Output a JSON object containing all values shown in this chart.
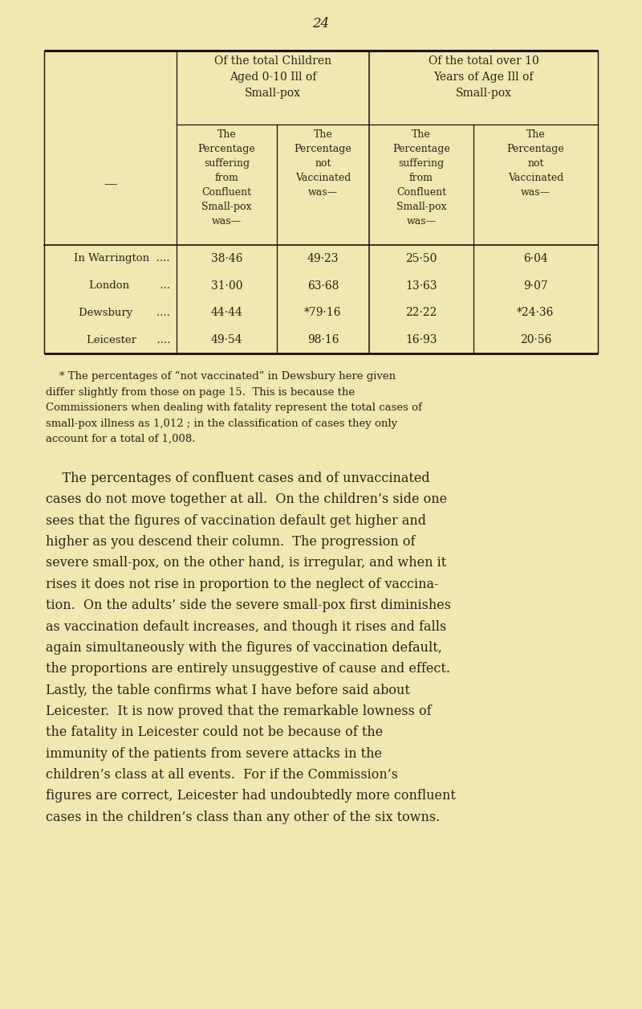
{
  "bg_color": "#f0e8b0",
  "page_number": "24",
  "table": {
    "col_headers_top": [
      "Of the total Children\nAged 0-10 Ill of\nSmall-pox",
      "Of the total over 10\nYears of Age Ill of\nSmall-pox"
    ],
    "col_headers_sub": [
      "The\nPercentage\nsuffering\nfrom\nConfluent\nSmall-pox\nwas—",
      "The\nPercentage\nnot\nVaccinated\nwas—",
      "The\nPercentage\nsuffering\nfrom\nConfluent\nSmall-pox\nwas—",
      "The\nPercentage\nnot\nVaccinated\nwas—"
    ],
    "row_header_label": "—",
    "rows": [
      [
        "In Warrington  ....",
        "38·46",
        "49·23",
        "25·50",
        "6·04"
      ],
      [
        "London         ...",
        "31·00",
        "63·68",
        "13·63",
        "9·07"
      ],
      [
        "Dewsbury       ....",
        "44·44",
        "*79·16",
        "22·22",
        "*24·36"
      ],
      [
        "Leicester      ....",
        "49·54",
        "98·16",
        "16·93",
        "20·56"
      ]
    ]
  },
  "footnote": "    * The percentages of “not vaccinated” in Dewsbury here given\ndiffer slightly from those on page 15.  This is because the\nCommissioners when dealing with fatality represent the total cases of\nsmall-pox illness as 1,012 ; in the classification of cases they only\naccount for a total of 1,008.",
  "body_paragraphs": [
    "    The percentages of confluent cases and of unvaccinated\ncases do not move together at all.  On the children’s side one\nsees that the figures of vaccination default get higher and\nhigher as you descend their column.  The progression of\nsevere small-pox, on the other hand, is irregular, and when it\nrises it does not rise in proportion to the neglect of vaccina-\ntion.  On the adults’ side the severe small-pox first diminishes\nas vaccination default increases, and though it rises and falls\nagain simultaneously with the figures of vaccination default,\nthe proportions are entirely unsuggestive of cause and effect.\nLastly, the table confirms what I have before said about\nLeicester.  It is now proved that the remarkable lowness of\nthe fatality in Leicester could not be because of the\nimmunity of the patients from severe attacks in the\nchildren’s class at all events.  For if the Commission’s\nfigures are correct, Leicester had undoubtedly more confluent\ncases in the children’s class than any other of the six towns."
  ],
  "text_color": "#2a2418",
  "line_color": "#1a1008"
}
